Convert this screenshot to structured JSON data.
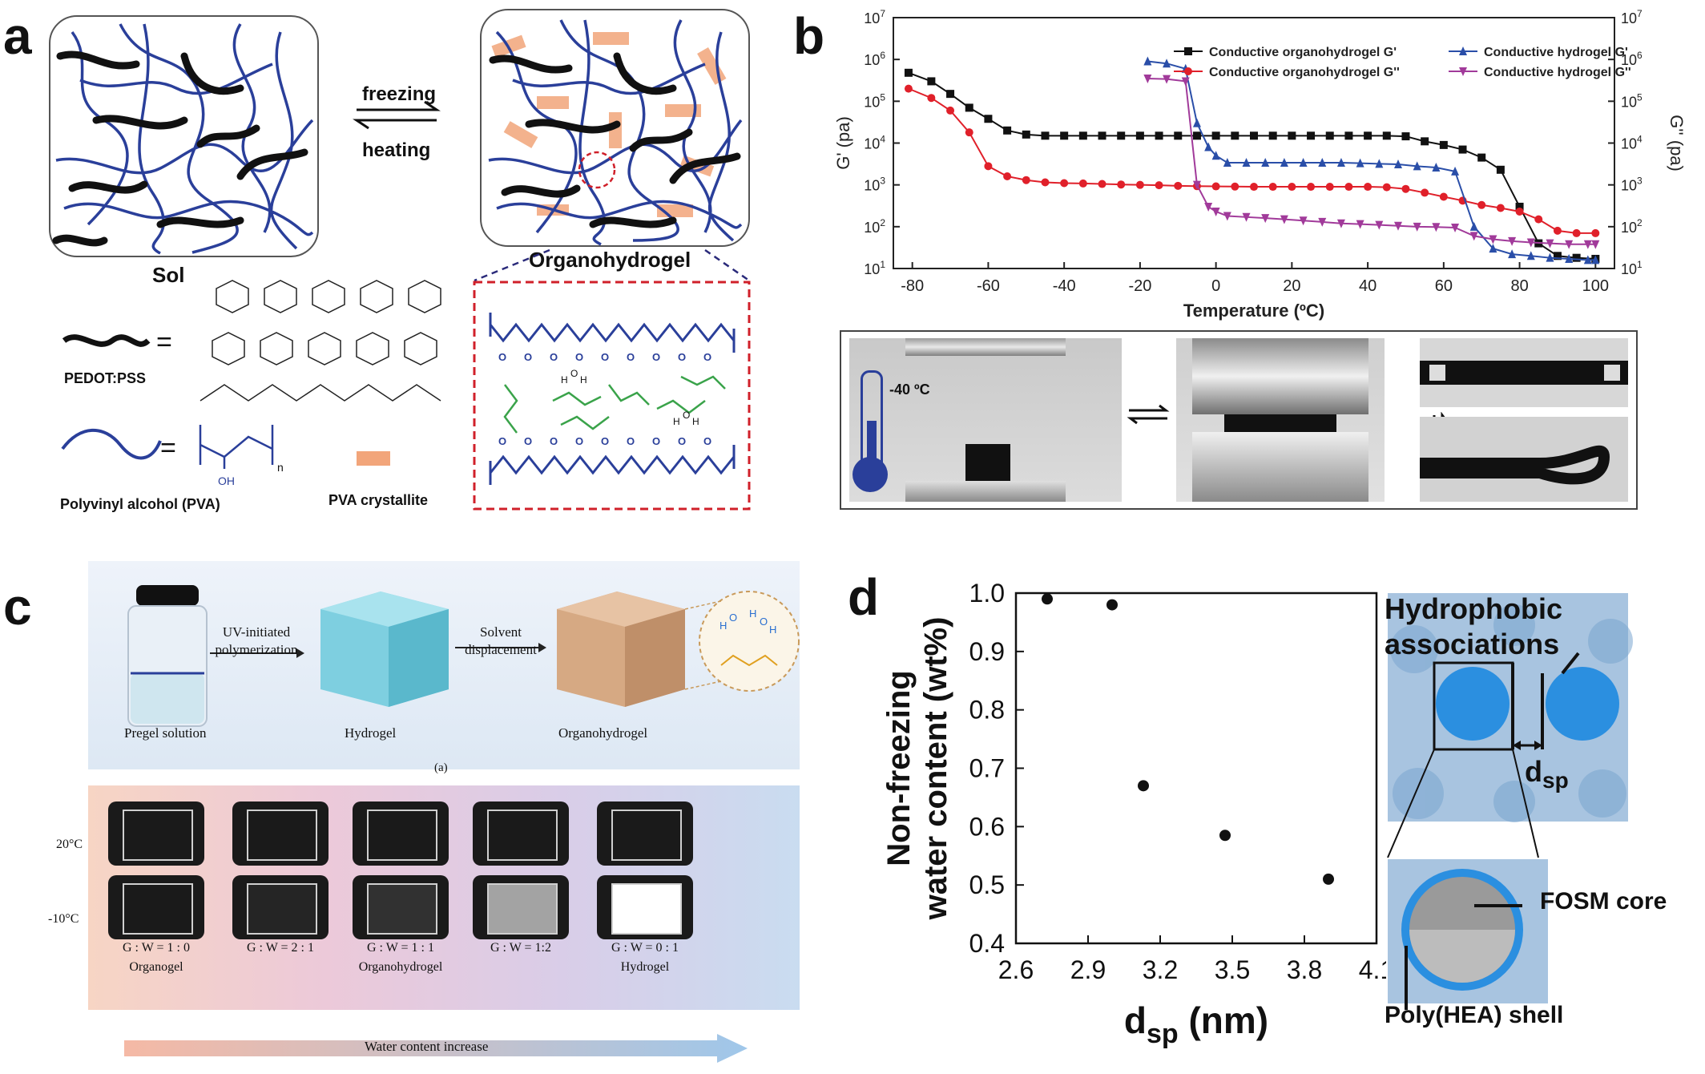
{
  "figure": {
    "panel_a": {
      "label": "a",
      "sol_label": "Sol",
      "organohydrogel_label": "Organohydrogel",
      "arrow_top": "freezing",
      "arrow_bottom": "heating",
      "legend_pedot": "PEDOT:PSS",
      "legend_pva": "Polyvinyl alcohol (PVA)",
      "legend_crystallite": "PVA crystallite",
      "legend_equals": "=",
      "pva_oh": "OH",
      "pva_n": "n",
      "colors": {
        "pva": "#2a3f9a",
        "pedot": "#111111",
        "crystallite": "#f2a57a",
        "eg": "#3aa34a",
        "dashed": "#d0202a"
      }
    },
    "panel_b": {
      "label": "b",
      "photo_temp": "-40 ºC"
    },
    "panel_c": {
      "label": "c",
      "step1": "UV-initiated polymerization",
      "step2": "Solvent displacement",
      "caption_pregel": "Pregel solution",
      "caption_hydrogel": "Hydrogel",
      "caption_organohydrogel": "Organohydrogel",
      "sub_a": "(a)",
      "row_20": "20°C",
      "row_m10": "-10°C",
      "ratios": [
        "G : W = 1 : 0",
        "G : W = 2 : 1",
        "G : W = 1 : 1",
        "G : W = 1:2",
        "G : W = 0 : 1"
      ],
      "names": [
        "Organogel",
        "",
        "Organohydrogel",
        "",
        "Hydrogel"
      ],
      "arrow_text": "Water content increase"
    },
    "panel_d": {
      "label": "d",
      "hydrophobic": "Hydrophobic associations",
      "dsp": "d",
      "dsp_sub": "sp",
      "core": "FOSM core",
      "shell": "Poly(HEA) shell"
    }
  },
  "chart_data": [
    {
      "type": "line",
      "xlabel": "Temperature (ºC)",
      "ylabel": "G' (pa)",
      "y2label": "G'' (pa)",
      "xlim": [
        -85,
        105
      ],
      "ylim": [
        10,
        10000000
      ],
      "yscale": "log",
      "xticks": [
        -80,
        -60,
        -40,
        -20,
        0,
        20,
        40,
        60,
        80,
        100
      ],
      "yticks": [
        {
          "v": 10,
          "b": "10",
          "e": "1"
        },
        {
          "v": 100,
          "b": "10",
          "e": "2"
        },
        {
          "v": 1000,
          "b": "10",
          "e": "3"
        },
        {
          "v": 10000,
          "b": "10",
          "e": "4"
        },
        {
          "v": 100000,
          "b": "10",
          "e": "5"
        },
        {
          "v": 1000000,
          "b": "10",
          "e": "6"
        },
        {
          "v": 10000000,
          "b": "10",
          "e": "7"
        }
      ],
      "series": [
        {
          "name": "Conductive organohydrogel G'",
          "color": "#111111",
          "marker": "square",
          "x": [
            -81,
            -75,
            -70,
            -65,
            -60,
            -55,
            -50,
            -45,
            -40,
            -35,
            -30,
            -25,
            -20,
            -15,
            -10,
            -5,
            0,
            5,
            10,
            15,
            20,
            25,
            30,
            35,
            40,
            45,
            50,
            55,
            60,
            65,
            70,
            75,
            80,
            85,
            90,
            95,
            100
          ],
          "y": [
            480000,
            300000,
            150000,
            70000,
            38000,
            20000,
            16000,
            15000,
            15000,
            15000,
            15000,
            15000,
            15000,
            15000,
            15000,
            15000,
            15000,
            15000,
            15000,
            15000,
            15000,
            15000,
            15000,
            15000,
            15000,
            15000,
            14500,
            11000,
            9000,
            7000,
            4500,
            2300,
            300,
            40,
            20,
            18,
            17
          ]
        },
        {
          "name": "Conductive organohydrogel G''",
          "color": "#e0202a",
          "marker": "circle",
          "x": [
            -81,
            -75,
            -70,
            -65,
            -60,
            -55,
            -50,
            -45,
            -40,
            -35,
            -30,
            -25,
            -20,
            -15,
            -10,
            -5,
            0,
            5,
            10,
            15,
            20,
            25,
            30,
            35,
            40,
            45,
            50,
            55,
            60,
            65,
            70,
            75,
            80,
            85,
            90,
            95,
            100
          ],
          "y": [
            200000,
            120000,
            60000,
            18000,
            2800,
            1600,
            1300,
            1150,
            1100,
            1080,
            1050,
            1020,
            1000,
            980,
            950,
            930,
            920,
            910,
            900,
            900,
            900,
            900,
            900,
            900,
            900,
            880,
            800,
            650,
            520,
            420,
            330,
            280,
            230,
            150,
            80,
            70,
            70
          ]
        },
        {
          "name": "Conductive hydrogel G'",
          "color": "#2a4ea8",
          "marker": "triangle-up",
          "x": [
            -18,
            -13,
            -8,
            -5,
            -2,
            0,
            3,
            8,
            13,
            18,
            23,
            28,
            33,
            38,
            43,
            48,
            53,
            58,
            63,
            68,
            73,
            78,
            83,
            88,
            93,
            98,
            100
          ],
          "y": [
            900000,
            800000,
            600000,
            30000,
            8000,
            5000,
            3400,
            3400,
            3400,
            3400,
            3400,
            3400,
            3400,
            3300,
            3200,
            3100,
            2800,
            2600,
            2100,
            100,
            30,
            22,
            20,
            18,
            17,
            16,
            16
          ]
        },
        {
          "name": "Conductive hydrogel G''",
          "color": "#a13a9a",
          "marker": "triangle-down",
          "x": [
            -18,
            -13,
            -8,
            -5,
            -2,
            0,
            3,
            8,
            13,
            18,
            23,
            28,
            33,
            38,
            43,
            48,
            53,
            58,
            63,
            68,
            73,
            78,
            83,
            88,
            93,
            98,
            100
          ],
          "y": [
            350000,
            340000,
            300000,
            1000,
            300,
            230,
            180,
            170,
            160,
            150,
            140,
            130,
            120,
            115,
            110,
            105,
            100,
            98,
            95,
            60,
            50,
            45,
            42,
            40,
            38,
            38,
            38
          ]
        }
      ],
      "legend_position": "top"
    },
    {
      "type": "scatter",
      "xlabel": "d",
      "xlabel_sub": "sp",
      "xlabel_unit": " (nm)",
      "ylabel": "Non-freezing water content (wt%)",
      "ylabel_line1": "Non-freezing",
      "ylabel_line2": "water content (wt%)",
      "xlim": [
        2.6,
        4.1
      ],
      "ylim": [
        0.4,
        1.0
      ],
      "xticks": [
        "2.6",
        "2.9",
        "3.2",
        "3.5",
        "3.8",
        "4.1"
      ],
      "yticks": [
        "0.4",
        "0.5",
        "0.6",
        "0.7",
        "0.8",
        "0.9",
        "1.0"
      ],
      "series": [
        {
          "x": [
            2.73,
            3.0,
            3.13,
            3.47,
            3.9
          ],
          "y": [
            0.99,
            0.98,
            0.67,
            0.585,
            0.51
          ]
        }
      ]
    }
  ]
}
